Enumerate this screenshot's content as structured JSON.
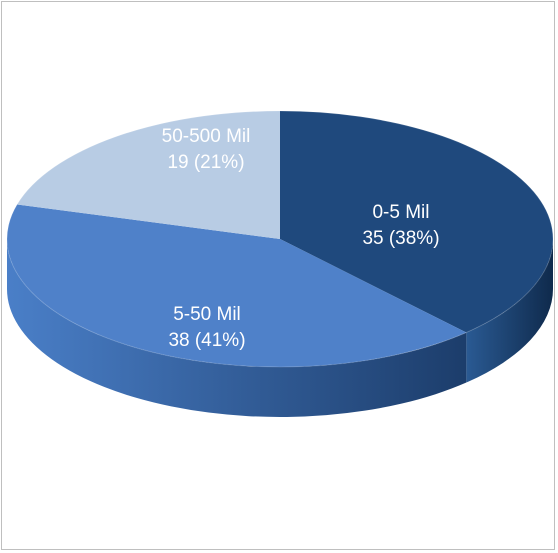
{
  "chart_data": {
    "type": "pie",
    "title": "",
    "three_d": true,
    "legend": "none",
    "slices": [
      {
        "category": "0-5 Mil",
        "value": 35,
        "percent_label": "35  (38%)",
        "color_top": "#1f497d",
        "color_side_light": "#2a5a93",
        "color_side_dark": "#0f2a4c"
      },
      {
        "category": "5-50 Mil",
        "value": 38,
        "percent_label": "38  (41%)",
        "color_top": "#4f81c9",
        "color_side_light": "#4a7fc8",
        "color_side_dark": "#1c3d6b"
      },
      {
        "category": "50-500 Mil",
        "value": 19,
        "percent_label": "19  (21%)",
        "color_top": "#b8cce4",
        "color_side_light": "#9fb6d6",
        "color_side_dark": "#6f8fb8"
      }
    ]
  }
}
